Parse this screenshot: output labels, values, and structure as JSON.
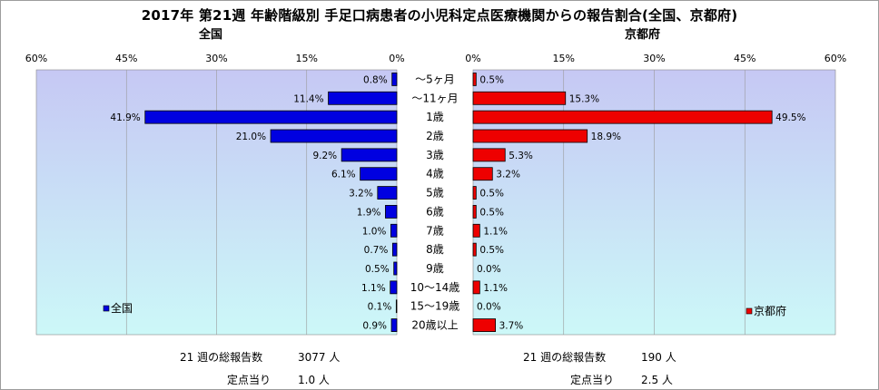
{
  "title": "2017年 第21週 年齢階級別 手足口病患者の小児科定点医療機関からの報告割合(全国、京都府)",
  "left_panel_title": "全国",
  "right_panel_title": "京都府",
  "chart_data": {
    "type": "bar",
    "orientation": "horizontal",
    "categories": [
      "〜5ヶ月",
      "〜11ヶ月",
      "1歳",
      "2歳",
      "3歳",
      "4歳",
      "5歳",
      "6歳",
      "7歳",
      "8歳",
      "9歳",
      "10〜14歳",
      "15〜19歳",
      "20歳以上"
    ],
    "series": [
      {
        "name": "全国",
        "values": [
          0.8,
          11.4,
          41.9,
          21.0,
          9.2,
          6.1,
          3.2,
          1.9,
          1.0,
          0.7,
          0.5,
          1.1,
          0.1,
          0.9
        ],
        "labels": [
          "0.8%",
          "11.4%",
          "41.9%",
          "21.0%",
          "9.2%",
          "6.1%",
          "3.2%",
          "1.9%",
          "1.0%",
          "0.7%",
          "0.5%",
          "1.1%",
          "0.1%",
          "0.9%"
        ],
        "color": "#0000e0"
      },
      {
        "name": "京都府",
        "values": [
          0.5,
          15.3,
          49.5,
          18.9,
          5.3,
          3.2,
          0.5,
          0.5,
          1.1,
          0.5,
          0.0,
          1.1,
          0.0,
          3.7
        ],
        "labels": [
          "0.5%",
          "15.3%",
          "49.5%",
          "18.9%",
          "5.3%",
          "3.2%",
          "0.5%",
          "0.5%",
          "1.1%",
          "0.5%",
          "0.0%",
          "1.1%",
          "0.0%",
          "3.7%"
        ],
        "color": "#ee0000"
      }
    ],
    "xlim": [
      0,
      60
    ],
    "left_ticks": [
      "60%",
      "45%",
      "30%",
      "15%",
      "0%"
    ],
    "right_ticks": [
      "0%",
      "15%",
      "30%",
      "45%",
      "60%"
    ],
    "grid": true,
    "plot_background": "#c8ccf4 to #ccf6f6 gradient",
    "legend": [
      "全国",
      "京都府"
    ],
    "legend_placement": "bottom-left / bottom-right inside each panel"
  },
  "footer": {
    "national_total_label": "21 週の総報告数",
    "national_total_value": "3077 人",
    "national_per_label": "定点当り",
    "national_per_value": "1.0 人",
    "kyoto_total_label": "21 週の総報告数",
    "kyoto_total_value": "190 人",
    "kyoto_per_label": "定点当り",
    "kyoto_per_value": "2.5 人"
  }
}
